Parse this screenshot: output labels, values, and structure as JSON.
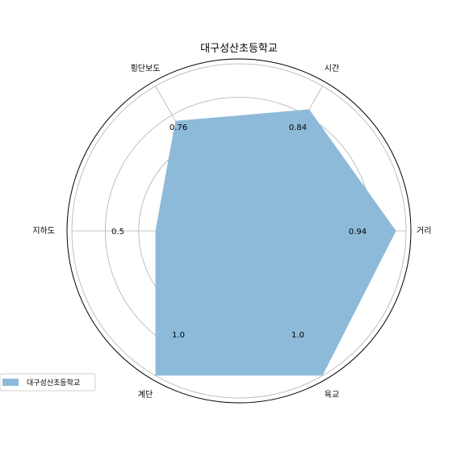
{
  "chart_data": {
    "type": "radar",
    "title": "대구성산초등학교",
    "categories": [
      "거리",
      "시간",
      "횡단보도",
      "지하도",
      "계단",
      "육교"
    ],
    "series": [
      {
        "name": "대구성산초등학교",
        "values": [
          0.94,
          0.84,
          0.76,
          0.5,
          1.0,
          1.0
        ]
      }
    ],
    "value_labels": [
      "0.94",
      "0.84",
      "0.76",
      "0.5",
      "1.0",
      "1.0"
    ],
    "rlim": [
      0,
      1
    ],
    "grid": true,
    "legend": "bottom-left",
    "fill_color": "#8ebad9",
    "grid_color": "#b0b0b0"
  }
}
